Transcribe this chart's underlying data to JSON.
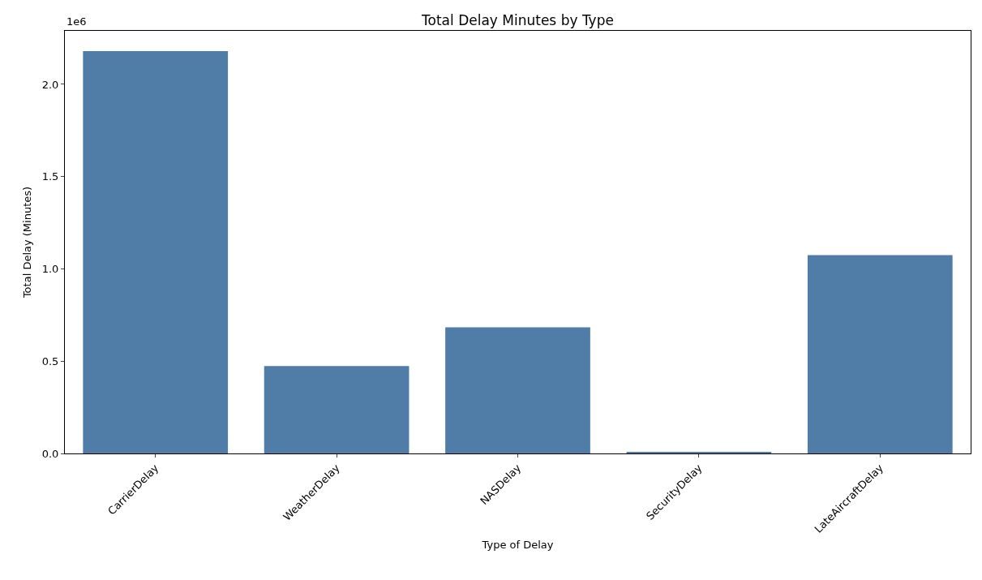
{
  "chart_data": {
    "type": "bar",
    "title": "Total Delay Minutes by Type",
    "xlabel": "Type of Delay",
    "ylabel": "Total Delay (Minutes)",
    "categories": [
      "CarrierDelay",
      "WeatherDelay",
      "NASDelay",
      "SecurityDelay",
      "LateAircraftDelay"
    ],
    "values": [
      2.18,
      0.474,
      0.684,
      0.009,
      1.075
    ],
    "color": "#4f7da8",
    "ylim": [
      0,
      2.29
    ],
    "yticks": [
      {
        "value": 0,
        "label": "0.0"
      },
      {
        "value": 0.5,
        "label": "0.5"
      },
      {
        "value": 1,
        "label": "1.0"
      },
      {
        "value": 1.5,
        "label": "1.5"
      },
      {
        "value": 2,
        "label": "2.0"
      }
    ],
    "annotations": [
      "1e6"
    ],
    "grid": false
  }
}
